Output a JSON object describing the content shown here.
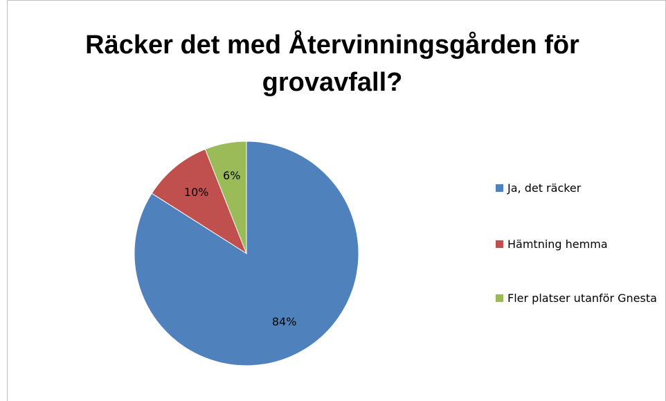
{
  "chart_data": {
    "type": "pie",
    "title": "Räcker det med Återvinningsgården för grovavfall?",
    "categories": [
      "Ja, det räcker",
      "Hämtning hemma",
      "Fler platser utanför Gnesta"
    ],
    "values": [
      84,
      10,
      6
    ],
    "value_labels": [
      "84%",
      "10%",
      "6%"
    ],
    "colors": [
      "#4f81bd",
      "#c0504d",
      "#9bbb59"
    ],
    "legend": "right"
  }
}
